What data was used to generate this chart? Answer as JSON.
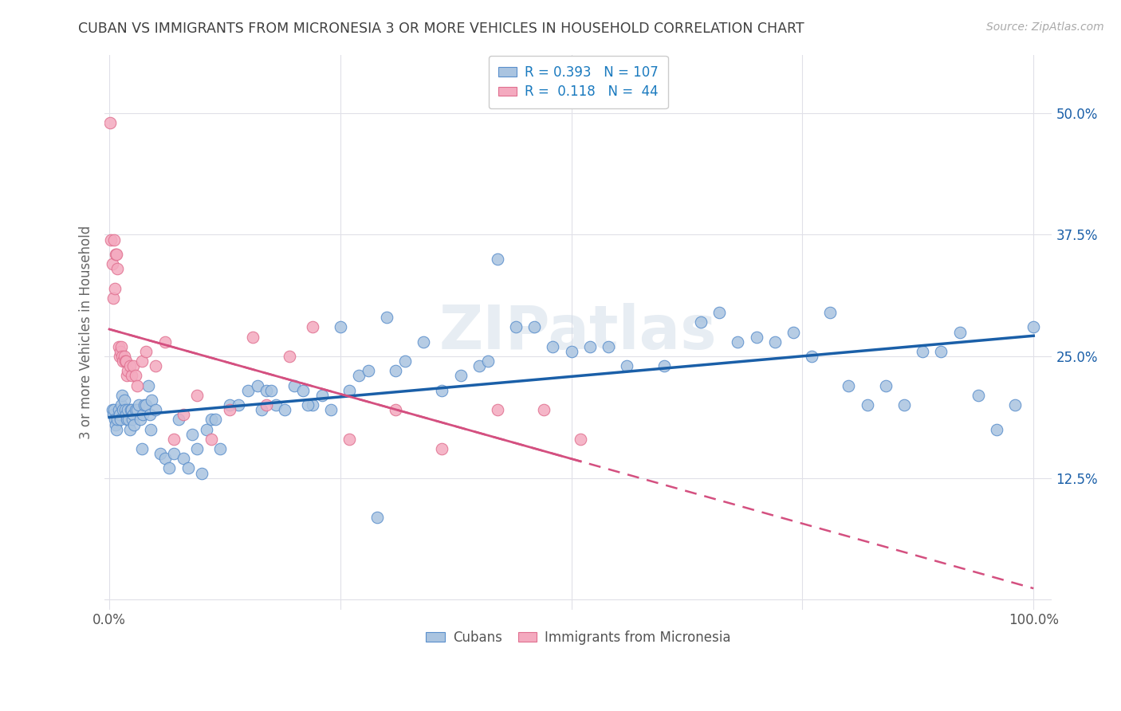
{
  "title": "CUBAN VS IMMIGRANTS FROM MICRONESIA 3 OR MORE VEHICLES IN HOUSEHOLD CORRELATION CHART",
  "source": "Source: ZipAtlas.com",
  "ylabel": "3 or more Vehicles in Household",
  "ytick_labels": [
    "",
    "12.5%",
    "25.0%",
    "37.5%",
    "50.0%"
  ],
  "ytick_values": [
    0.0,
    0.125,
    0.25,
    0.375,
    0.5
  ],
  "xlim": [
    -0.005,
    1.02
  ],
  "ylim": [
    -0.01,
    0.56
  ],
  "cubans_R": 0.393,
  "cubans_N": 107,
  "micronesia_R": 0.118,
  "micronesia_N": 44,
  "cubans_color": "#aac4e0",
  "cubans_edge_color": "#5a8fcc",
  "cubans_line_color": "#1a5fa8",
  "micronesia_color": "#f4aabf",
  "micronesia_edge_color": "#e07090",
  "micronesia_line_color": "#d45080",
  "background_color": "#ffffff",
  "grid_color": "#e0e0e8",
  "title_color": "#404040",
  "watermark_color": "#d0dce8",
  "legend_color": "#1a7abf",
  "source_color": "#aaaaaa",
  "cubans_x": [
    0.003,
    0.004,
    0.005,
    0.006,
    0.007,
    0.008,
    0.009,
    0.01,
    0.011,
    0.012,
    0.013,
    0.014,
    0.015,
    0.016,
    0.017,
    0.018,
    0.019,
    0.02,
    0.021,
    0.022,
    0.023,
    0.024,
    0.025,
    0.026,
    0.027,
    0.028,
    0.03,
    0.032,
    0.034,
    0.036,
    0.038,
    0.04,
    0.042,
    0.044,
    0.046,
    0.05,
    0.055,
    0.06,
    0.065,
    0.07,
    0.075,
    0.08,
    0.085,
    0.09,
    0.095,
    0.1,
    0.105,
    0.11,
    0.115,
    0.12,
    0.13,
    0.14,
    0.15,
    0.16,
    0.17,
    0.18,
    0.19,
    0.2,
    0.21,
    0.22,
    0.23,
    0.24,
    0.25,
    0.26,
    0.27,
    0.28,
    0.3,
    0.32,
    0.34,
    0.36,
    0.38,
    0.4,
    0.42,
    0.44,
    0.46,
    0.48,
    0.5,
    0.52,
    0.54,
    0.56,
    0.6,
    0.64,
    0.66,
    0.68,
    0.7,
    0.72,
    0.74,
    0.76,
    0.78,
    0.8,
    0.82,
    0.84,
    0.86,
    0.88,
    0.9,
    0.92,
    0.94,
    0.96,
    0.98,
    1.0,
    0.035,
    0.045,
    0.29,
    0.215,
    0.165,
    0.175,
    0.31,
    0.41
  ],
  "cubans_y": [
    0.195,
    0.19,
    0.195,
    0.185,
    0.18,
    0.175,
    0.185,
    0.195,
    0.19,
    0.185,
    0.2,
    0.21,
    0.195,
    0.205,
    0.195,
    0.19,
    0.185,
    0.195,
    0.185,
    0.175,
    0.195,
    0.195,
    0.185,
    0.19,
    0.18,
    0.195,
    0.195,
    0.2,
    0.185,
    0.19,
    0.2,
    0.2,
    0.22,
    0.19,
    0.205,
    0.195,
    0.15,
    0.145,
    0.135,
    0.15,
    0.185,
    0.145,
    0.135,
    0.17,
    0.155,
    0.13,
    0.175,
    0.185,
    0.185,
    0.155,
    0.2,
    0.2,
    0.215,
    0.22,
    0.215,
    0.2,
    0.195,
    0.22,
    0.215,
    0.2,
    0.21,
    0.195,
    0.28,
    0.215,
    0.23,
    0.235,
    0.29,
    0.245,
    0.265,
    0.215,
    0.23,
    0.24,
    0.35,
    0.28,
    0.28,
    0.26,
    0.255,
    0.26,
    0.26,
    0.24,
    0.24,
    0.285,
    0.295,
    0.265,
    0.27,
    0.265,
    0.275,
    0.25,
    0.295,
    0.22,
    0.2,
    0.22,
    0.2,
    0.255,
    0.255,
    0.275,
    0.21,
    0.175,
    0.2,
    0.28,
    0.155,
    0.175,
    0.085,
    0.2,
    0.195,
    0.215,
    0.235,
    0.245
  ],
  "micronesia_x": [
    0.001,
    0.002,
    0.003,
    0.004,
    0.005,
    0.006,
    0.007,
    0.008,
    0.009,
    0.01,
    0.011,
    0.012,
    0.013,
    0.014,
    0.015,
    0.016,
    0.017,
    0.018,
    0.019,
    0.02,
    0.022,
    0.024,
    0.026,
    0.028,
    0.03,
    0.035,
    0.04,
    0.05,
    0.06,
    0.07,
    0.08,
    0.095,
    0.11,
    0.13,
    0.155,
    0.17,
    0.195,
    0.22,
    0.26,
    0.31,
    0.36,
    0.42,
    0.47,
    0.51
  ],
  "micronesia_y": [
    0.49,
    0.37,
    0.345,
    0.31,
    0.37,
    0.32,
    0.355,
    0.355,
    0.34,
    0.26,
    0.25,
    0.255,
    0.26,
    0.25,
    0.245,
    0.25,
    0.245,
    0.245,
    0.23,
    0.235,
    0.24,
    0.23,
    0.24,
    0.23,
    0.22,
    0.245,
    0.255,
    0.24,
    0.265,
    0.165,
    0.19,
    0.21,
    0.165,
    0.195,
    0.27,
    0.2,
    0.25,
    0.28,
    0.165,
    0.195,
    0.155,
    0.195,
    0.195,
    0.165
  ]
}
